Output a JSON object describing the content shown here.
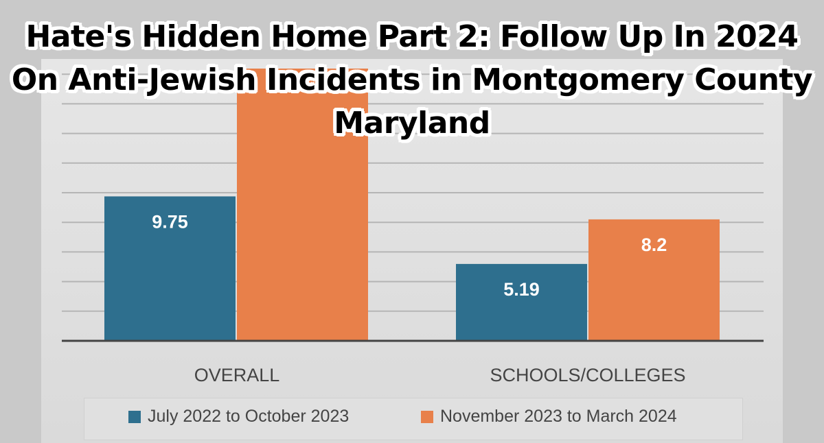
{
  "title": "Hate's Hidden Home Part 2: Follow Up In 2024 On Anti-Jewish Incidents in Montgomery County Maryland",
  "chart_data": {
    "type": "bar",
    "categories": [
      "OVERALL",
      "SCHOOLS/COLLEGES"
    ],
    "series": [
      {
        "name": "July 2022 to October 2023",
        "values": [
          9.75,
          5.19
        ],
        "labels": [
          "9.75",
          "5.19"
        ],
        "color": "#2e6f8e"
      },
      {
        "name": "November 2023 to March 2024",
        "values": [
          18.4,
          8.2
        ],
        "labels": [
          "",
          "8.2"
        ],
        "color": "#e8804a"
      }
    ],
    "ylim": [
      0,
      18
    ],
    "grid": true,
    "legend": "bottom"
  }
}
